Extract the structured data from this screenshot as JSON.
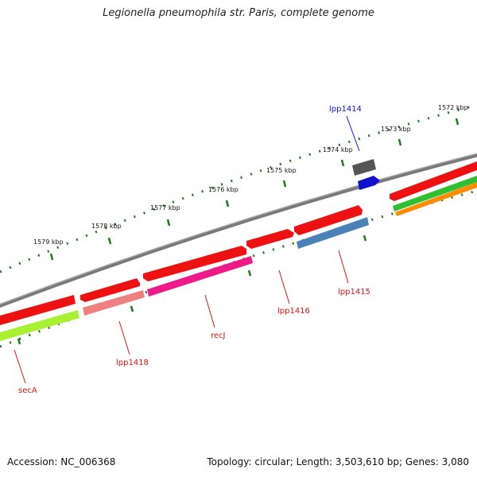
{
  "title": "Legionella pneumophila str. Paris, complete genome",
  "footer": {
    "accession": "Accession: NC_006368",
    "summary": "Topology: circular; Length: 3,503,610 bp; Genes: 3,080"
  },
  "scale": {
    "tick_labels": [
      "1572 kbp",
      "1573 kbp",
      "1574 kbp",
      "1575 kbp",
      "1576 kbp",
      "1577 kbp",
      "1578 kbp",
      "1579 kbp"
    ]
  },
  "colors": {
    "backbone": "#8a8a8a",
    "ticks": "#1e7a1e",
    "forward_gene": "#ee1111",
    "label_red": "#dd1111",
    "label_blue": "#1111cc"
  },
  "genes": [
    {
      "name": "lpp1414",
      "color": "#1111cc",
      "label_color": "#1111cc"
    },
    {
      "name": "lpp1415",
      "color": "#4a82b8",
      "label_color": "#dd1111"
    },
    {
      "name": "lpp1416",
      "color": "#ee1111",
      "label_color": "#dd1111"
    },
    {
      "name": "recJ",
      "color": "#ee1a8a",
      "label_color": "#dd1111"
    },
    {
      "name": "lpp1418",
      "color": "#f08080",
      "label_color": "#dd1111"
    },
    {
      "name": "secA",
      "color": "#a8f030",
      "label_color": "#dd1111"
    }
  ]
}
